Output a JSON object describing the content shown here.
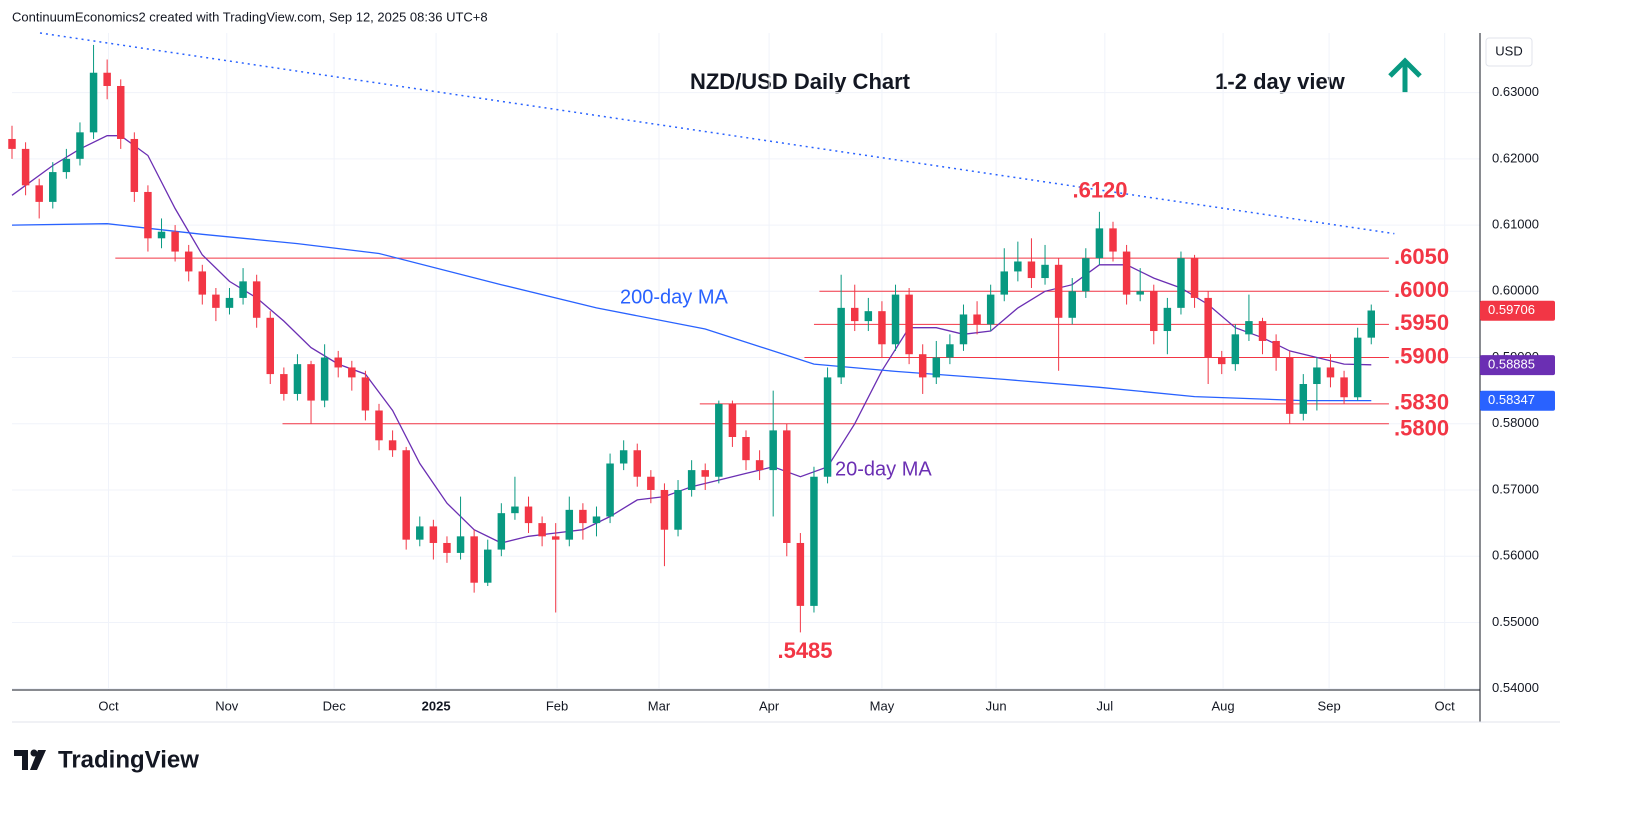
{
  "header": "ContinuumEconomics2 created with TradingView.com, Sep 12, 2025 08:36 UTC+8",
  "footer": "TradingView",
  "chart_data": {
    "type": "candlestick",
    "title": "NZD/USD Daily Chart",
    "subtitle": "1-2 day view",
    "currency": "USD",
    "up_color": "#089981",
    "down_color": "#f23645",
    "xlim": [
      0,
      108
    ],
    "ylim": [
      0.5398,
      0.639
    ],
    "xticks": [
      {
        "value": 7.1,
        "label": "Oct"
      },
      {
        "value": 15.8,
        "label": "Nov"
      },
      {
        "value": 23.7,
        "label": "Dec"
      },
      {
        "value": 31.2,
        "label": "2025"
      },
      {
        "value": 40.1,
        "label": "Feb"
      },
      {
        "value": 47.6,
        "label": "Mar"
      },
      {
        "value": 55.7,
        "label": "Apr"
      },
      {
        "value": 64.0,
        "label": "May"
      },
      {
        "value": 72.4,
        "label": "Jun"
      },
      {
        "value": 80.4,
        "label": "Jul"
      },
      {
        "value": 89.1,
        "label": "Aug"
      },
      {
        "value": 96.9,
        "label": "Sep"
      },
      {
        "value": 105.4,
        "label": "Oct"
      }
    ],
    "yticks": [
      {
        "value": 0.54,
        "label": "0.54000"
      },
      {
        "value": 0.55,
        "label": "0.55000"
      },
      {
        "value": 0.56,
        "label": "0.56000"
      },
      {
        "value": 0.57,
        "label": "0.57000"
      },
      {
        "value": 0.58,
        "label": "0.58000"
      },
      {
        "value": 0.59,
        "label": "0.59000"
      },
      {
        "value": 0.6,
        "label": "0.60000"
      },
      {
        "value": 0.61,
        "label": "0.61000"
      },
      {
        "value": 0.62,
        "label": "0.62000"
      },
      {
        "value": 0.63,
        "label": "0.63000"
      }
    ],
    "grid": true,
    "x": [
      0,
      1,
      2,
      3,
      4,
      5,
      6,
      7,
      8,
      9,
      10,
      11,
      12,
      13,
      14,
      15,
      16,
      17,
      18,
      19,
      20,
      21,
      22,
      23,
      24,
      25,
      26,
      27,
      28,
      29,
      30,
      31,
      32,
      33,
      34,
      35,
      36,
      37,
      38,
      39,
      40,
      41,
      42,
      43,
      44,
      45,
      46,
      47,
      48,
      49,
      50,
      51,
      52,
      53,
      54,
      55,
      56,
      57,
      58,
      59,
      60,
      61,
      62,
      63,
      64,
      65,
      66,
      67,
      68,
      69,
      70,
      71,
      72,
      73,
      74,
      75,
      76,
      77,
      78,
      79,
      80,
      81,
      82,
      83,
      84,
      85,
      86,
      87,
      88,
      89,
      90,
      91,
      92,
      93,
      94,
      95,
      96,
      97,
      98,
      99,
      100
    ],
    "open": [
      0.623,
      0.6215,
      0.616,
      0.6135,
      0.618,
      0.62,
      0.624,
      0.633,
      0.631,
      0.623,
      0.615,
      0.608,
      0.609,
      0.606,
      0.603,
      0.5995,
      0.5975,
      0.599,
      0.6015,
      0.596,
      0.5875,
      0.5845,
      0.589,
      0.5835,
      0.59,
      0.5885,
      0.587,
      0.582,
      0.5775,
      0.576,
      0.5625,
      0.5645,
      0.562,
      0.5605,
      0.563,
      0.556,
      0.561,
      0.5665,
      0.5675,
      0.565,
      0.563,
      0.5625,
      0.567,
      0.565,
      0.566,
      0.574,
      0.576,
      0.572,
      0.57,
      0.564,
      0.57,
      0.573,
      0.572,
      0.583,
      0.578,
      0.5745,
      0.573,
      0.579,
      0.562,
      0.5525,
      0.572,
      0.587,
      0.5975,
      0.5955,
      0.597,
      0.592,
      0.5995,
      0.5905,
      0.587,
      0.59,
      0.592,
      0.5965,
      0.595,
      0.5995,
      0.603,
      0.6045,
      0.602,
      0.604,
      0.596,
      0.6,
      0.605,
      0.6095,
      0.606,
      0.5995,
      0.6,
      0.594,
      0.5975,
      0.605,
      0.599,
      0.59,
      0.589,
      0.5935,
      0.5955,
      0.5925,
      0.59,
      0.5815,
      0.586,
      0.5885,
      0.587,
      0.584,
      0.593
    ],
    "high": [
      0.625,
      0.6225,
      0.617,
      0.6195,
      0.6215,
      0.6255,
      0.6372,
      0.635,
      0.632,
      0.624,
      0.616,
      0.611,
      0.61,
      0.607,
      0.604,
      0.6005,
      0.6005,
      0.6035,
      0.6025,
      0.597,
      0.5885,
      0.5905,
      0.5895,
      0.592,
      0.591,
      0.5895,
      0.588,
      0.583,
      0.579,
      0.5765,
      0.566,
      0.5655,
      0.563,
      0.569,
      0.564,
      0.5625,
      0.568,
      0.572,
      0.569,
      0.566,
      0.565,
      0.569,
      0.568,
      0.5675,
      0.5755,
      0.5775,
      0.577,
      0.573,
      0.571,
      0.5715,
      0.5745,
      0.574,
      0.5835,
      0.5835,
      0.579,
      0.576,
      0.585,
      0.58,
      0.5635,
      0.5735,
      0.5885,
      0.6025,
      0.601,
      0.599,
      0.5985,
      0.601,
      0.6005,
      0.592,
      0.5925,
      0.5935,
      0.598,
      0.5985,
      0.601,
      0.6065,
      0.6075,
      0.608,
      0.607,
      0.605,
      0.602,
      0.6065,
      0.612,
      0.6105,
      0.607,
      0.6035,
      0.601,
      0.599,
      0.606,
      0.6055,
      0.6,
      0.591,
      0.595,
      0.5995,
      0.596,
      0.5935,
      0.591,
      0.5875,
      0.59,
      0.5905,
      0.588,
      0.5945,
      0.598
    ],
    "low": [
      0.62,
      0.6145,
      0.611,
      0.6125,
      0.617,
      0.619,
      0.623,
      0.629,
      0.6215,
      0.6135,
      0.606,
      0.6065,
      0.6045,
      0.6015,
      0.598,
      0.5955,
      0.5965,
      0.598,
      0.5945,
      0.586,
      0.5835,
      0.5835,
      0.58,
      0.5825,
      0.587,
      0.585,
      0.5805,
      0.576,
      0.575,
      0.561,
      0.5615,
      0.5595,
      0.559,
      0.5595,
      0.5545,
      0.5555,
      0.56,
      0.5655,
      0.5635,
      0.5615,
      0.5515,
      0.5615,
      0.5625,
      0.563,
      0.565,
      0.573,
      0.5705,
      0.568,
      0.5585,
      0.563,
      0.569,
      0.57,
      0.571,
      0.5765,
      0.573,
      0.5715,
      0.566,
      0.56,
      0.5485,
      0.5515,
      0.571,
      0.586,
      0.594,
      0.594,
      0.59,
      0.591,
      0.589,
      0.5845,
      0.586,
      0.589,
      0.591,
      0.5935,
      0.594,
      0.5985,
      0.6015,
      0.6005,
      0.601,
      0.588,
      0.595,
      0.599,
      0.604,
      0.6045,
      0.598,
      0.5985,
      0.592,
      0.5905,
      0.5965,
      0.5975,
      0.586,
      0.5875,
      0.588,
      0.5925,
      0.5905,
      0.588,
      0.58,
      0.5805,
      0.582,
      0.5855,
      0.583,
      0.5835,
      0.592
    ],
    "close": [
      0.6215,
      0.616,
      0.6135,
      0.618,
      0.62,
      0.624,
      0.633,
      0.631,
      0.623,
      0.615,
      0.608,
      0.609,
      0.606,
      0.603,
      0.5995,
      0.5975,
      0.599,
      0.6015,
      0.596,
      0.5875,
      0.5845,
      0.589,
      0.5835,
      0.59,
      0.5885,
      0.587,
      0.582,
      0.5775,
      0.576,
      0.5625,
      0.5645,
      0.562,
      0.5605,
      0.563,
      0.556,
      0.561,
      0.5665,
      0.5675,
      0.565,
      0.563,
      0.5625,
      0.567,
      0.565,
      0.566,
      0.574,
      0.576,
      0.572,
      0.57,
      0.564,
      0.57,
      0.573,
      0.572,
      0.583,
      0.578,
      0.5745,
      0.573,
      0.579,
      0.562,
      0.5525,
      0.572,
      0.587,
      0.5975,
      0.5955,
      0.597,
      0.592,
      0.5995,
      0.5905,
      0.587,
      0.59,
      0.592,
      0.5965,
      0.595,
      0.5995,
      0.603,
      0.6045,
      0.602,
      0.604,
      0.596,
      0.6,
      0.605,
      0.6095,
      0.606,
      0.5995,
      0.6,
      0.594,
      0.5975,
      0.605,
      0.599,
      0.59,
      0.589,
      0.5935,
      0.5955,
      0.5925,
      0.59,
      0.5815,
      0.586,
      0.5885,
      0.587,
      0.584,
      0.593,
      0.5971
    ],
    "price_badge": {
      "value": 0.59706,
      "label": "0.59706"
    },
    "series": [
      {
        "name": "20-day MA",
        "color": "#6b2fb3",
        "x": [
          0,
          3,
          5,
          7,
          8,
          10,
          12,
          14,
          16,
          18,
          20,
          22,
          24,
          26,
          28,
          30,
          32,
          34,
          36,
          38,
          40,
          42,
          44,
          46,
          48,
          50,
          52,
          54,
          56,
          58,
          60,
          62,
          64,
          66,
          68,
          70,
          72,
          74,
          76,
          78,
          80,
          82,
          84,
          86,
          88,
          90,
          92,
          94,
          96,
          98,
          100
        ],
        "values": [
          0.6145,
          0.619,
          0.6215,
          0.6235,
          0.6235,
          0.6205,
          0.6125,
          0.6055,
          0.6015,
          0.599,
          0.5955,
          0.5915,
          0.589,
          0.5875,
          0.582,
          0.574,
          0.568,
          0.564,
          0.562,
          0.563,
          0.5635,
          0.564,
          0.566,
          0.5685,
          0.569,
          0.5705,
          0.5715,
          0.5725,
          0.5735,
          0.572,
          0.5735,
          0.58,
          0.588,
          0.5945,
          0.5945,
          0.5935,
          0.594,
          0.5975,
          0.6,
          0.601,
          0.604,
          0.604,
          0.602,
          0.6005,
          0.598,
          0.5945,
          0.593,
          0.591,
          0.59,
          0.589,
          0.5889
        ],
        "badge": {
          "value": 0.58885,
          "label": "0.58885"
        }
      },
      {
        "name": "200-day MA",
        "color": "#2962ff",
        "x": [
          0,
          7,
          14,
          21,
          27,
          36,
          43,
          51,
          59,
          65,
          73,
          80,
          87,
          95,
          100
        ],
        "values": [
          0.61,
          0.6102,
          0.6086,
          0.6072,
          0.6057,
          0.601,
          0.5975,
          0.5943,
          0.589,
          0.5879,
          0.5867,
          0.5855,
          0.5841,
          0.5835,
          0.5835
        ],
        "badge": {
          "value": 0.58347,
          "label": "0.58347"
        }
      }
    ],
    "trendline": {
      "x": [
        2.06,
        101.7
      ],
      "values": [
        0.639,
        0.6087
      ]
    },
    "levels": [
      {
        "value": 0.605,
        "label": ".6050",
        "from": 7.6
      },
      {
        "value": 0.6,
        "label": ".6000",
        "from": 59.4
      },
      {
        "value": 0.595,
        "label": ".5950",
        "from": 59
      },
      {
        "value": 0.59,
        "label": ".5900",
        "from": 58.3
      },
      {
        "value": 0.583,
        "label": ".5830",
        "from": 50.6
      },
      {
        "value": 0.58,
        "label": ".5800",
        "from": 19.9
      }
    ],
    "annotations": [
      {
        "text": ".6120",
        "value": 0.612
      },
      {
        "text": ".5485",
        "value": 0.5485
      }
    ]
  }
}
